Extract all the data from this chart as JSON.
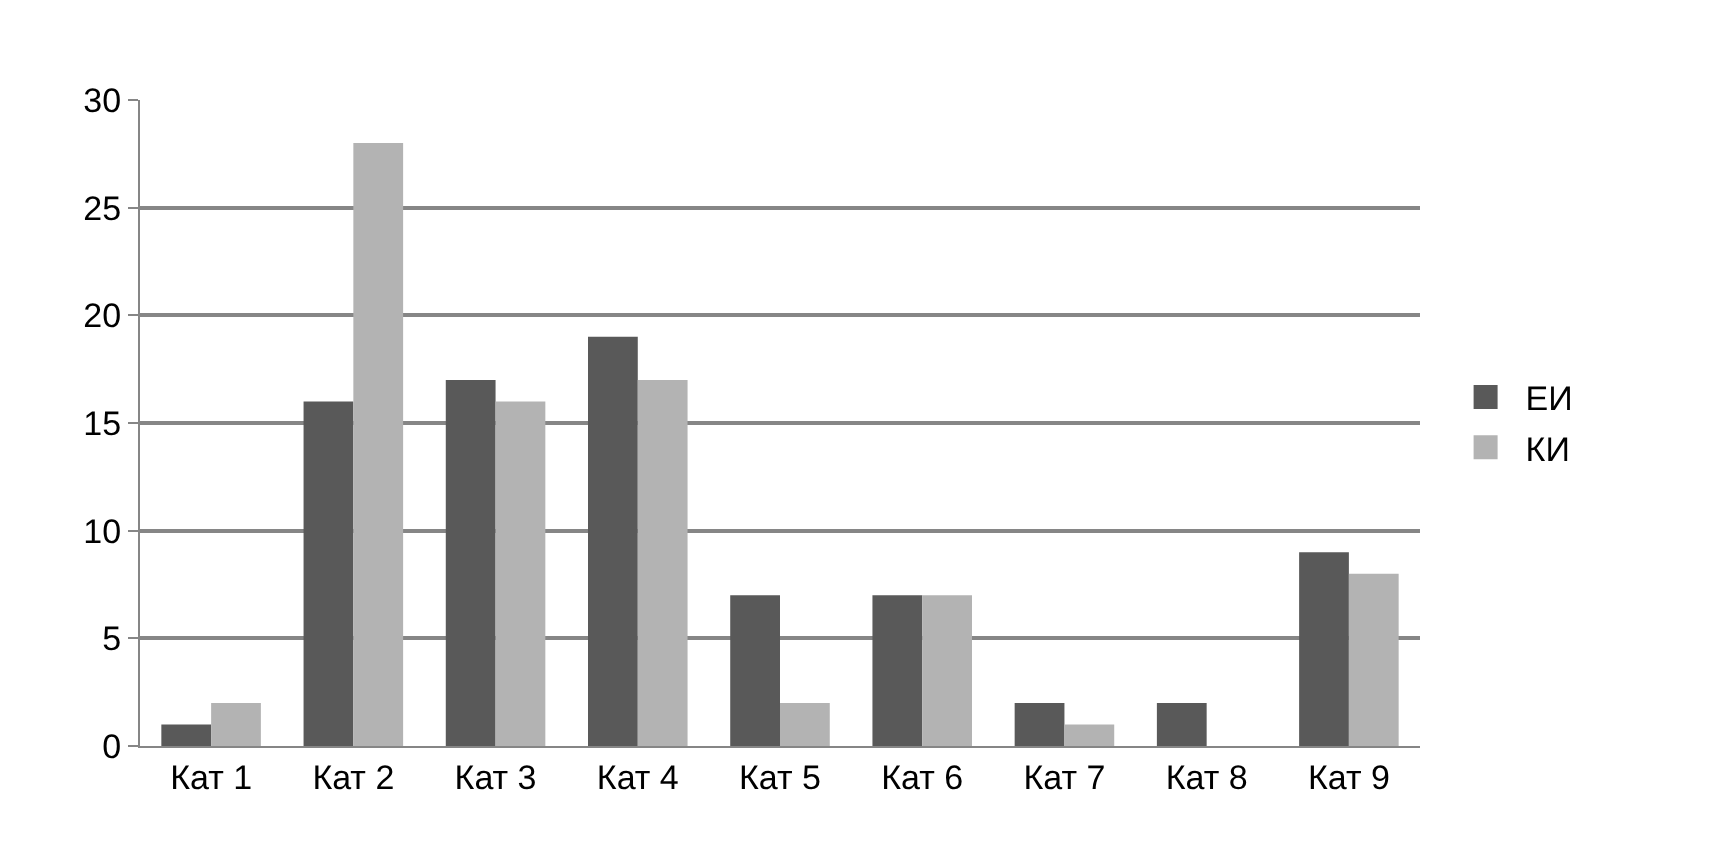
{
  "chart_data": {
    "type": "bar",
    "categories": [
      "Кат 1",
      "Кат 2",
      "Кат 3",
      "Кат 4",
      "Кат 5",
      "Кат 6",
      "Кат 7",
      "Кат 8",
      "Кат 9"
    ],
    "series": [
      {
        "name": "ЕИ",
        "color": "#595959",
        "values": [
          1,
          16,
          17,
          19,
          7,
          7,
          2,
          2,
          9
        ]
      },
      {
        "name": "КИ",
        "color": "#b3b3b3",
        "values": [
          2,
          28,
          16,
          17,
          2,
          7,
          1,
          0,
          8
        ]
      }
    ],
    "ylim": [
      0,
      30
    ],
    "yticks": [
      0,
      5,
      10,
      15,
      20,
      25,
      30
    ],
    "grid": "y",
    "legend": "right"
  }
}
